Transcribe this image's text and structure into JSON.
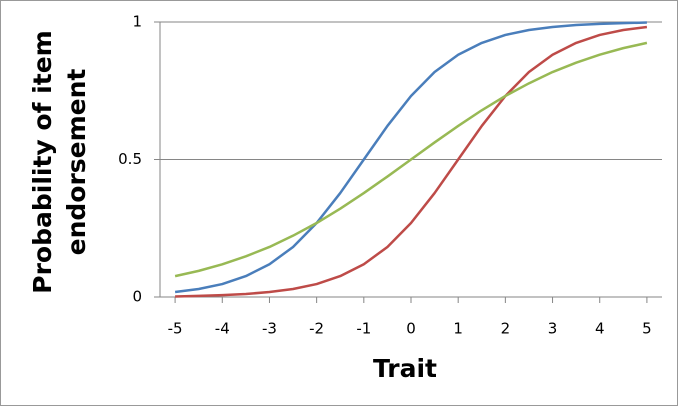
{
  "chart_data": {
    "type": "line",
    "x_label": "Trait",
    "y_label": "Probability of item endorsement",
    "x": [
      -5,
      -4.5,
      -4,
      -3.5,
      -3,
      -2.5,
      -2,
      -1.5,
      -1,
      -0.5,
      0,
      0.5,
      1,
      1.5,
      2,
      2.5,
      3,
      3.5,
      4,
      4.5,
      5
    ],
    "series": [
      {
        "color": "#4a7ebb",
        "values": [
          0.018,
          0.029,
          0.047,
          0.076,
          0.119,
          0.182,
          0.269,
          0.378,
          0.5,
          0.622,
          0.731,
          0.818,
          0.881,
          0.924,
          0.953,
          0.971,
          0.982,
          0.989,
          0.993,
          0.996,
          0.998
        ]
      },
      {
        "color": "#be4b48",
        "values": [
          0.002,
          0.004,
          0.007,
          0.011,
          0.018,
          0.029,
          0.047,
          0.076,
          0.119,
          0.182,
          0.269,
          0.378,
          0.5,
          0.622,
          0.731,
          0.818,
          0.881,
          0.924,
          0.953,
          0.971,
          0.982
        ]
      },
      {
        "color": "#98b954",
        "values": [
          0.076,
          0.095,
          0.119,
          0.148,
          0.182,
          0.223,
          0.269,
          0.321,
          0.378,
          0.438,
          0.5,
          0.562,
          0.622,
          0.679,
          0.731,
          0.777,
          0.818,
          0.852,
          0.881,
          0.905,
          0.924
        ]
      }
    ],
    "xlim": [
      -5.32,
      5.32
    ],
    "xticks": [
      -5,
      -4,
      -3,
      -2,
      -1,
      0,
      1,
      2,
      3,
      4,
      5
    ],
    "ylim": [
      0,
      1
    ],
    "yticks": [
      0,
      0.5,
      1
    ],
    "grid": true
  }
}
